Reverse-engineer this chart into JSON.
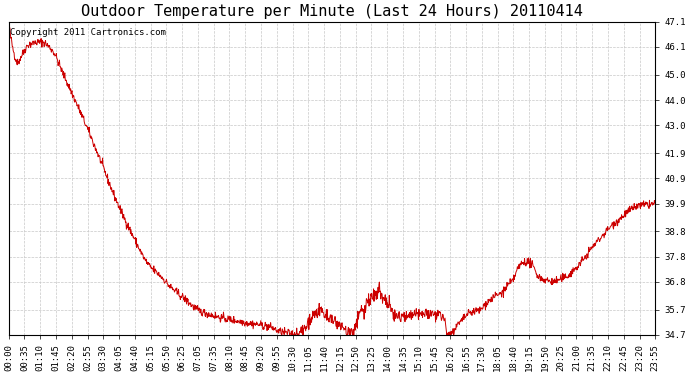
{
  "title": "Outdoor Temperature per Minute (Last 24 Hours) 20110414",
  "copyright_text": "Copyright 2011 Cartronics.com",
  "line_color": "#cc0000",
  "background_color": "#ffffff",
  "grid_color": "#c8c8c8",
  "y_min": 34.7,
  "y_max": 47.1,
  "y_ticks": [
    34.7,
    35.7,
    36.8,
    37.8,
    38.8,
    39.9,
    40.9,
    41.9,
    43.0,
    44.0,
    45.0,
    46.1,
    47.1
  ],
  "x_labels": [
    "00:00",
    "00:35",
    "01:10",
    "01:45",
    "02:20",
    "02:55",
    "03:30",
    "04:05",
    "04:40",
    "05:15",
    "05:50",
    "06:25",
    "07:05",
    "07:35",
    "08:10",
    "08:45",
    "09:20",
    "09:55",
    "10:30",
    "11:05",
    "11:40",
    "12:15",
    "12:50",
    "13:25",
    "14:00",
    "14:35",
    "15:10",
    "15:45",
    "16:20",
    "16:55",
    "17:30",
    "18:05",
    "18:40",
    "19:15",
    "19:50",
    "20:25",
    "21:00",
    "21:35",
    "22:10",
    "22:45",
    "23:20",
    "23:55"
  ],
  "title_fontsize": 11,
  "tick_fontsize": 6.5,
  "copyright_fontsize": 6.5,
  "curve_keypoints": [
    [
      0,
      47.1
    ],
    [
      10,
      46.0
    ],
    [
      20,
      45.5
    ],
    [
      30,
      45.8
    ],
    [
      45,
      46.2
    ],
    [
      75,
      46.3
    ],
    [
      90,
      46.1
    ],
    [
      100,
      45.9
    ],
    [
      115,
      45.3
    ],
    [
      140,
      44.3
    ],
    [
      165,
      43.3
    ],
    [
      200,
      41.8
    ],
    [
      240,
      40.0
    ],
    [
      280,
      38.5
    ],
    [
      310,
      37.5
    ],
    [
      340,
      37.0
    ],
    [
      360,
      36.6
    ],
    [
      380,
      36.3
    ],
    [
      400,
      36.0
    ],
    [
      420,
      35.7
    ],
    [
      450,
      35.5
    ],
    [
      480,
      35.35
    ],
    [
      510,
      35.25
    ],
    [
      540,
      35.15
    ],
    [
      560,
      35.1
    ],
    [
      575,
      35.05
    ],
    [
      590,
      34.95
    ],
    [
      600,
      34.85
    ],
    [
      615,
      34.8
    ],
    [
      630,
      34.75
    ],
    [
      640,
      34.72
    ],
    [
      650,
      34.75
    ],
    [
      660,
      35.0
    ],
    [
      670,
      35.3
    ],
    [
      680,
      35.5
    ],
    [
      690,
      35.6
    ],
    [
      700,
      35.55
    ],
    [
      705,
      35.5
    ],
    [
      710,
      35.4
    ],
    [
      715,
      35.35
    ],
    [
      720,
      35.3
    ],
    [
      730,
      35.2
    ],
    [
      740,
      35.1
    ],
    [
      750,
      34.9
    ],
    [
      760,
      34.8
    ],
    [
      765,
      34.75
    ],
    [
      770,
      35.0
    ],
    [
      780,
      35.5
    ],
    [
      790,
      35.8
    ],
    [
      800,
      36.0
    ],
    [
      810,
      36.2
    ],
    [
      820,
      36.3
    ],
    [
      825,
      36.4
    ],
    [
      830,
      36.3
    ],
    [
      840,
      36.0
    ],
    [
      850,
      35.7
    ],
    [
      860,
      35.5
    ],
    [
      870,
      35.4
    ],
    [
      880,
      35.35
    ],
    [
      890,
      35.4
    ],
    [
      900,
      35.45
    ],
    [
      910,
      35.5
    ],
    [
      920,
      35.5
    ],
    [
      930,
      35.55
    ],
    [
      940,
      35.55
    ],
    [
      950,
      35.5
    ],
    [
      960,
      35.4
    ],
    [
      970,
      35.3
    ],
    [
      975,
      34.9
    ],
    [
      980,
      34.8
    ],
    [
      985,
      34.75
    ],
    [
      995,
      35.0
    ],
    [
      1005,
      35.2
    ],
    [
      1010,
      35.3
    ],
    [
      1020,
      35.5
    ],
    [
      1030,
      35.6
    ],
    [
      1040,
      35.65
    ],
    [
      1050,
      35.7
    ],
    [
      1060,
      35.9
    ],
    [
      1080,
      36.2
    ],
    [
      1100,
      36.4
    ],
    [
      1110,
      36.65
    ],
    [
      1120,
      36.8
    ],
    [
      1130,
      37.2
    ],
    [
      1140,
      37.5
    ],
    [
      1150,
      37.6
    ],
    [
      1160,
      37.55
    ],
    [
      1170,
      37.3
    ],
    [
      1180,
      37.0
    ],
    [
      1190,
      36.9
    ],
    [
      1200,
      36.85
    ],
    [
      1210,
      36.8
    ],
    [
      1220,
      36.85
    ],
    [
      1240,
      37.0
    ],
    [
      1260,
      37.3
    ],
    [
      1280,
      37.7
    ],
    [
      1300,
      38.2
    ],
    [
      1320,
      38.6
    ],
    [
      1340,
      39.0
    ],
    [
      1360,
      39.3
    ],
    [
      1380,
      39.6
    ],
    [
      1400,
      39.8
    ],
    [
      1420,
      39.85
    ],
    [
      1439,
      39.9
    ]
  ]
}
